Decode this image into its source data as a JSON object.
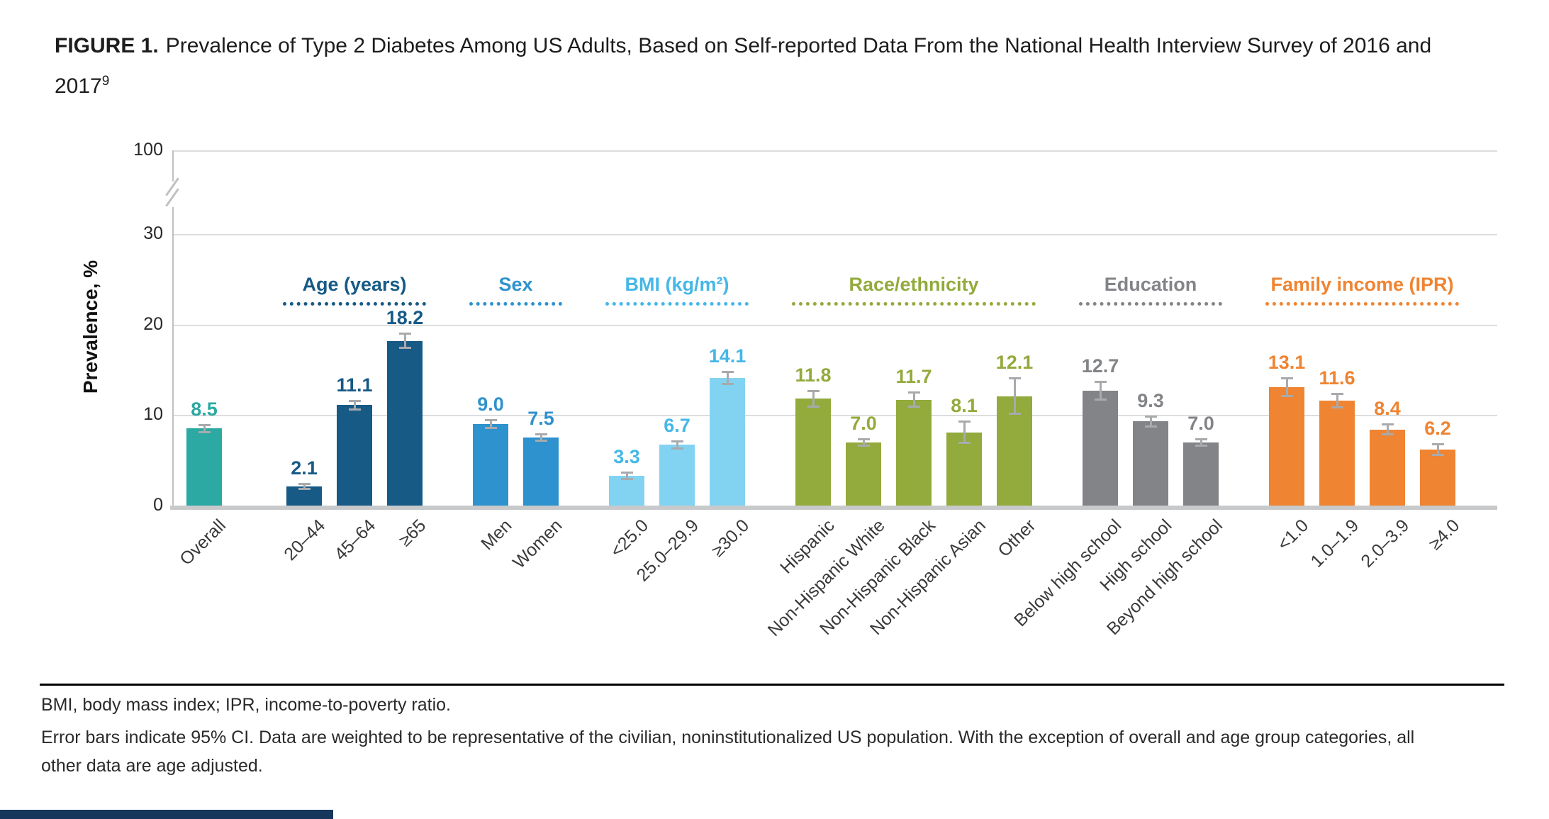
{
  "page": {
    "figure_label": "FIGURE 1.",
    "title": "Prevalence of Type 2 Diabetes Among US Adults, Based on Self-reported Data From the National Health Interview Survey of 2016 and 2017",
    "citation_superscript": "9",
    "footnote_abbreviations": "BMI, body mass index; IPR, income-to-poverty ratio.",
    "footnote_note": "Error bars indicate 95% CI. Data are weighted to be representative of the civilian, noninstitutionalized US population. With the exception of overall and age group categories, all other data are age adjusted.",
    "accent_bar_color": "#16365C"
  },
  "chart_data": {
    "type": "bar",
    "ylabel": "Prevalence, %",
    "yticks": [
      0,
      10,
      20,
      30,
      100
    ],
    "axis_break_between": [
      30,
      100
    ],
    "ylim_display": [
      0,
      30
    ],
    "grid": true,
    "legend_position": "none",
    "groups": [
      {
        "label": "",
        "color": "#2BA9A2",
        "bars": [
          {
            "category": "Overall",
            "value": 8.5,
            "ci": 0.4
          }
        ]
      },
      {
        "label": "Age (years)",
        "color": "#175A86",
        "bars": [
          {
            "category": "20–44",
            "value": 2.1,
            "ci": 0.3
          },
          {
            "category": "45–64",
            "value": 11.1,
            "ci": 0.5
          },
          {
            "category": "≥65",
            "value": 18.2,
            "ci": 0.8
          }
        ]
      },
      {
        "label": "Sex",
        "color": "#2E92CE",
        "bars": [
          {
            "category": "Men",
            "value": 9.0,
            "ci": 0.5
          },
          {
            "category": "Women",
            "value": 7.5,
            "ci": 0.4
          }
        ]
      },
      {
        "label": "BMI (kg/m²)",
        "color": "#82D3F2",
        "label_color": "#45B7E8",
        "bars": [
          {
            "category": "<25.0",
            "value": 3.3,
            "ci": 0.4
          },
          {
            "category": "25.0–29.9",
            "value": 6.7,
            "ci": 0.4
          },
          {
            "category": "≥30.0",
            "value": 14.1,
            "ci": 0.7
          }
        ]
      },
      {
        "label": "Race/ethnicity",
        "color": "#93AA3C",
        "bars": [
          {
            "category": "Hispanic",
            "value": 11.8,
            "ci": 0.9
          },
          {
            "category": "Non-Hispanic White",
            "value": 7.0,
            "ci": 0.4
          },
          {
            "category": "Non-Hispanic Black",
            "value": 11.7,
            "ci": 0.8
          },
          {
            "category": "Non-Hispanic Asian",
            "value": 8.1,
            "ci": 1.2
          },
          {
            "category": "Other",
            "value": 12.1,
            "ci": 2.0
          }
        ]
      },
      {
        "label": "Education",
        "color": "#828487",
        "bars": [
          {
            "category": "Below high school",
            "value": 12.7,
            "ci": 1.0
          },
          {
            "category": "High school",
            "value": 9.3,
            "ci": 0.6
          },
          {
            "category": "Beyond high school",
            "value": 7.0,
            "ci": 0.4
          }
        ]
      },
      {
        "label": "Family income (IPR)",
        "color": "#EF8432",
        "bars": [
          {
            "category": "<1.0",
            "value": 13.1,
            "ci": 1.0
          },
          {
            "category": "1.0–1.9",
            "value": 11.6,
            "ci": 0.8
          },
          {
            "category": "2.0–3.9",
            "value": 8.4,
            "ci": 0.6
          },
          {
            "category": "≥4.0",
            "value": 6.2,
            "ci": 0.6
          }
        ]
      }
    ]
  }
}
